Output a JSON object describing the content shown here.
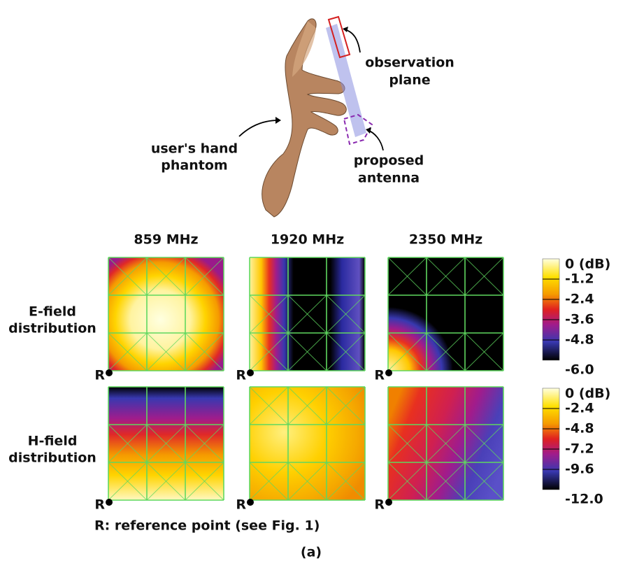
{
  "figure": {
    "annotations": {
      "observation_plane": [
        "observation",
        "plane"
      ],
      "hand_phantom": [
        "user's hand",
        "phantom"
      ],
      "antenna": [
        "proposed",
        "antenna"
      ]
    },
    "columns": [
      "859 MHz",
      "1920 MHz",
      "2350 MHz"
    ],
    "rows": [
      {
        "label": [
          "E-field",
          "distribution"
        ],
        "colorbar": [
          "0 (dB)",
          "-1.2",
          "-2.4",
          "-3.6",
          "-4.8",
          "-6.0"
        ]
      },
      {
        "label": [
          "H-field",
          "distribution"
        ],
        "colorbar": [
          "0 (dB)",
          "-2.4",
          "-4.8",
          "-7.2",
          "-9.6",
          "-12.0"
        ]
      }
    ],
    "reference_marker": "R",
    "footnote": "R: reference point (see Fig. 1)",
    "caption": "(a)"
  }
}
